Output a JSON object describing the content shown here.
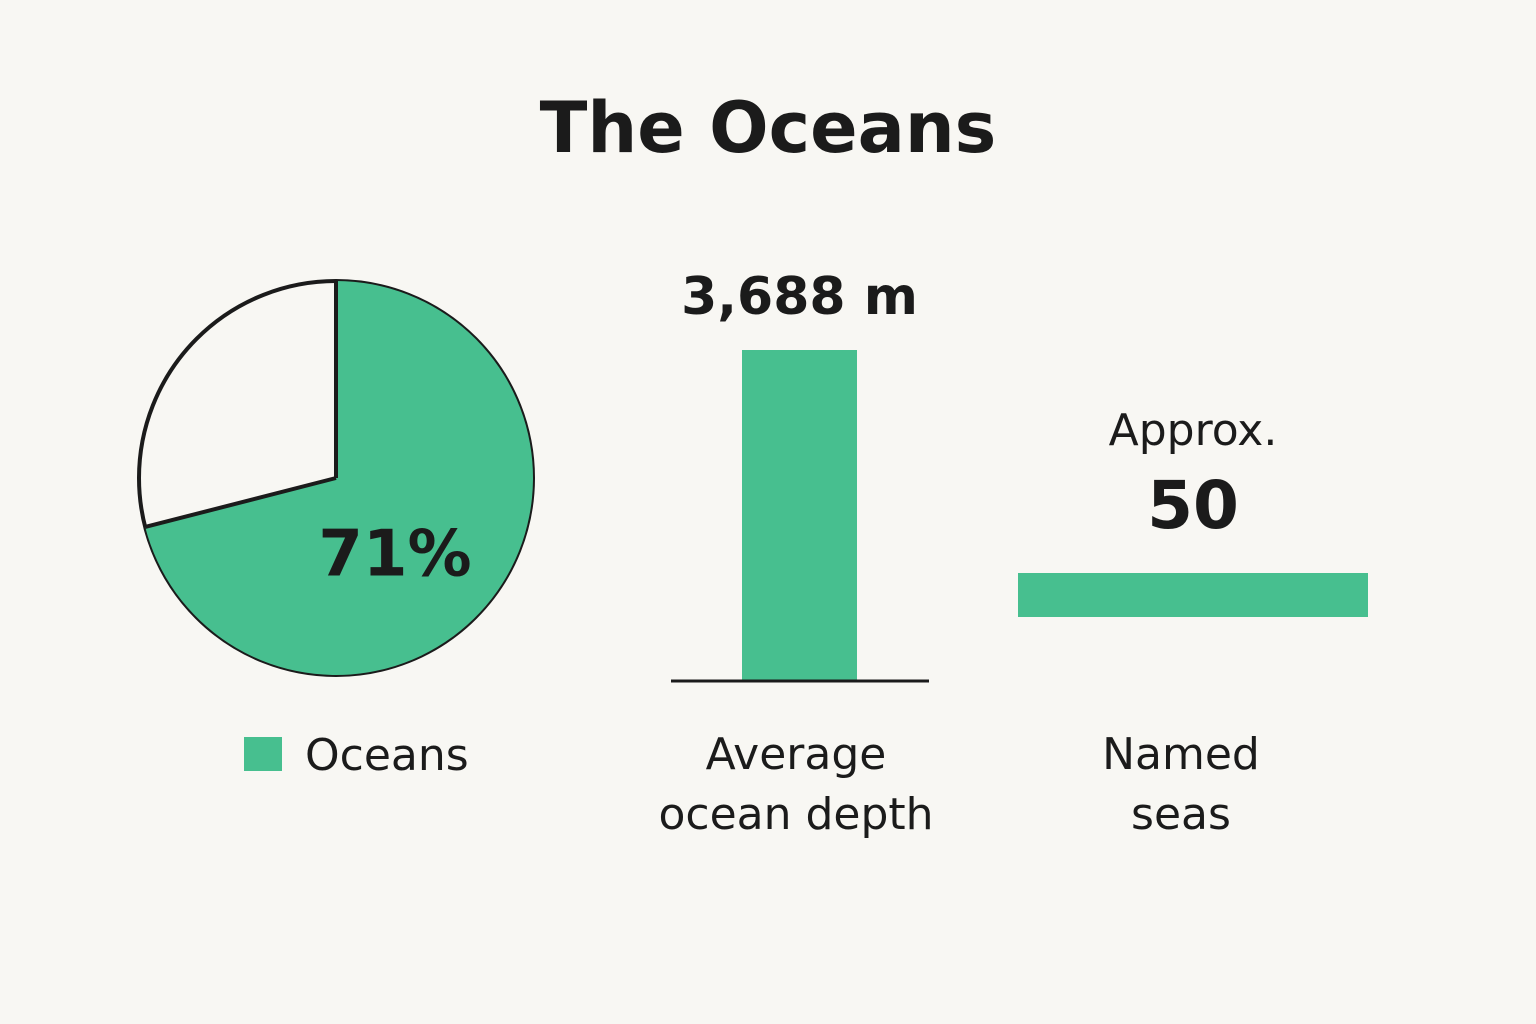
{
  "title": "The Oceans",
  "chart_data": [
    {
      "type": "pie",
      "categories": [
        "Oceans"
      ],
      "values": [
        71
      ],
      "value_labels": [
        "71%"
      ],
      "color": "#47bf8f",
      "legend": "bottom"
    },
    {
      "type": "bar",
      "orientation": "vertical",
      "categories": [
        "Average ocean depth"
      ],
      "values": [
        3688
      ],
      "value_labels": [
        "3,688 m"
      ],
      "color": "#47bf8f"
    },
    {
      "type": "bar",
      "orientation": "horizontal",
      "categories": [
        "Named seas"
      ],
      "values": [
        50
      ],
      "annotation": "Approx.",
      "color": "#47bf8f"
    }
  ]
}
